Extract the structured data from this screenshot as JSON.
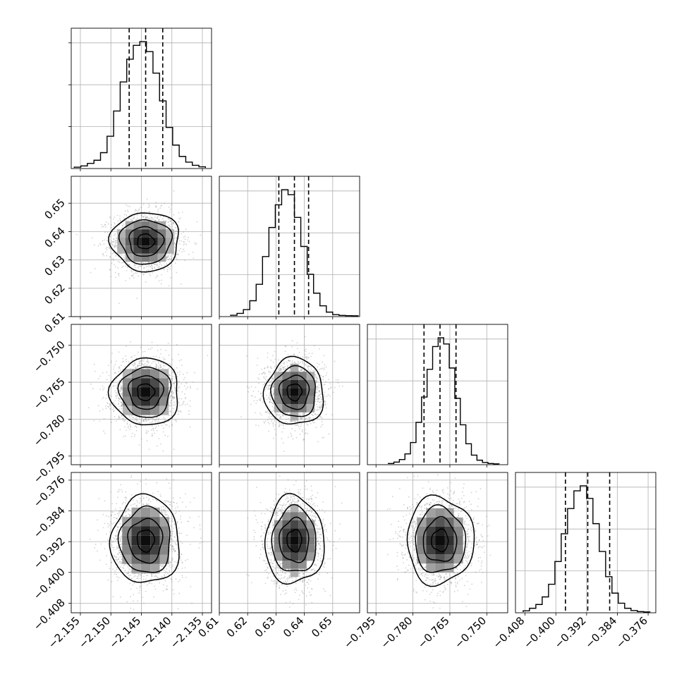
{
  "chart_data": {
    "type": "scatter",
    "subtype": "corner-plot",
    "title": "",
    "parameters": [
      "",
      "",
      "",
      ""
    ],
    "axes": [
      {
        "range": [
          -2.1565,
          -2.1335
        ],
        "ticks": [
          -2.155,
          -2.15,
          -2.145,
          -2.14,
          -2.135
        ],
        "tick_labels": [
          "−2.155",
          "−2.150",
          "−2.145",
          "−2.140",
          "−2.135"
        ]
      },
      {
        "range": [
          0.61,
          0.6595
        ],
        "ticks": [
          0.61,
          0.62,
          0.63,
          0.64,
          0.65
        ],
        "tick_labels": [
          "0.61",
          "0.62",
          "0.63",
          "0.64",
          "0.65"
        ]
      },
      {
        "range": [
          -0.7985,
          -0.7415
        ],
        "ticks": [
          -0.795,
          -0.78,
          -0.765,
          -0.75
        ],
        "tick_labels": [
          "−0.795",
          "−0.780",
          "−0.765",
          "−0.750"
        ]
      },
      {
        "range": [
          -0.4105,
          -0.374
        ],
        "ticks": [
          -0.408,
          -0.4,
          -0.392,
          -0.384,
          -0.376
        ],
        "tick_labels": [
          "−0.408",
          "−0.400",
          "−0.392",
          "−0.384",
          "−0.376"
        ]
      }
    ],
    "quantiles": [
      [
        -2.147,
        -2.1443,
        -2.1415
      ],
      [
        0.631,
        0.6365,
        0.6415
      ],
      [
        -0.7755,
        -0.769,
        -0.7625
      ],
      [
        -0.3975,
        -0.3917,
        -0.386
      ]
    ],
    "histograms": [
      {
        "edges_range": [
          -2.156,
          -2.1345
        ],
        "bins": 20,
        "counts": [
          0.005,
          0.015,
          0.035,
          0.06,
          0.12,
          0.25,
          0.45,
          0.68,
          0.86,
          0.97,
          1.0,
          0.92,
          0.75,
          0.53,
          0.32,
          0.18,
          0.09,
          0.045,
          0.02,
          0.008
        ]
      },
      {
        "edges_range": [
          0.614,
          0.659
        ],
        "bins": 20,
        "counts": [
          0.005,
          0.02,
          0.05,
          0.12,
          0.25,
          0.47,
          0.7,
          0.88,
          1.0,
          0.96,
          0.78,
          0.55,
          0.33,
          0.18,
          0.08,
          0.03,
          0.01,
          0.004,
          0.002,
          0.001
        ]
      },
      {
        "edges_range": [
          -0.79,
          -0.745
        ],
        "bins": 20,
        "counts": [
          0.004,
          0.015,
          0.035,
          0.08,
          0.17,
          0.33,
          0.53,
          0.75,
          0.93,
          1.0,
          0.95,
          0.76,
          0.52,
          0.31,
          0.16,
          0.07,
          0.03,
          0.012,
          0.004,
          0.001
        ]
      },
      {
        "edges_range": [
          -0.4085,
          -0.3755
        ],
        "bins": 20,
        "counts": [
          0.01,
          0.03,
          0.06,
          0.12,
          0.22,
          0.4,
          0.62,
          0.82,
          0.96,
          1.0,
          0.9,
          0.7,
          0.48,
          0.28,
          0.15,
          0.07,
          0.03,
          0.012,
          0.004,
          0.001
        ]
      }
    ],
    "distribution": {
      "centers": [
        -2.1443,
        0.6365,
        -0.769,
        -0.3917
      ],
      "sigmas": [
        0.0028,
        0.0052,
        0.0068,
        0.0057
      ]
    },
    "samples_per_panel": 1800,
    "grid": true,
    "contour_levels_sigma": [
      0.5,
      1.0,
      1.5,
      2.0
    ]
  }
}
